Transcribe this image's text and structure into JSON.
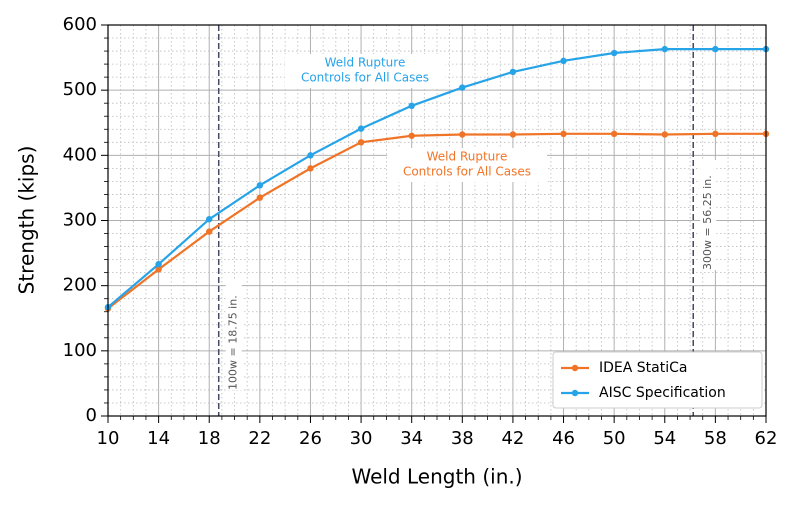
{
  "chart_data": {
    "type": "line",
    "xlabel": "Weld Length (in.)",
    "ylabel": "Strength (kips)",
    "x": [
      10,
      14,
      18,
      22,
      26,
      30,
      34,
      38,
      42,
      46,
      50,
      54,
      58,
      62
    ],
    "series": [
      {
        "name": "IDEA StatiCa",
        "color": "#f07427",
        "values": [
          165,
          225,
          283,
          335,
          380,
          420,
          430,
          432,
          432,
          433,
          433,
          432,
          433,
          433
        ]
      },
      {
        "name": "AISC Specification",
        "color": "#27a3e8",
        "values": [
          167,
          233,
          302,
          354,
          400,
          441,
          476,
          504,
          528,
          545,
          557,
          563,
          563,
          563
        ]
      }
    ],
    "xlim": [
      10,
      62
    ],
    "xticks": [
      10,
      14,
      18,
      22,
      26,
      30,
      34,
      38,
      42,
      46,
      50,
      54,
      58,
      62
    ],
    "ylim": [
      0,
      600
    ],
    "yticks": [
      0,
      100,
      200,
      300,
      400,
      500,
      600
    ],
    "grid": true,
    "minor_grid": true,
    "legend": "lower right",
    "vlines": [
      {
        "x": 18.75,
        "label": "100w = 18.75 in."
      },
      {
        "x": 56.25,
        "label": "300w = 56.25 in."
      }
    ],
    "annotations": [
      {
        "lines": [
          "Weld Rupture",
          "Controls for All Cases"
        ],
        "color": "#27a3e8"
      },
      {
        "lines": [
          "Weld Rupture",
          "Controls for All Cases"
        ],
        "color": "#f07427"
      }
    ]
  }
}
